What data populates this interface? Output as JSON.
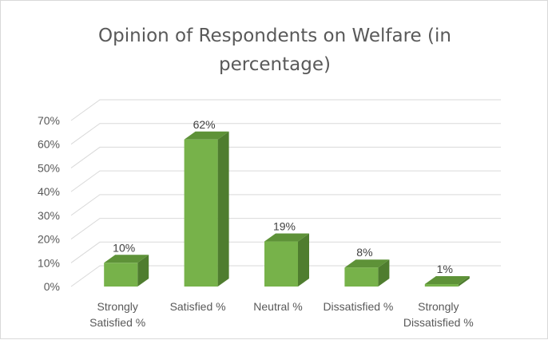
{
  "chart_data": {
    "type": "bar",
    "title": "Opinion of Respondents on Welfare (in\npercentage)",
    "categories": [
      [
        "Strongly",
        "Satisfied %"
      ],
      [
        "Satisfied %"
      ],
      [
        "Neutral %"
      ],
      [
        "Dissatisfied %"
      ],
      [
        "Strongly",
        "Dissatisfied %"
      ]
    ],
    "values": [
      10,
      62,
      19,
      8,
      1
    ],
    "data_labels": [
      "10%",
      "62%",
      "19%",
      "8%",
      "1%"
    ],
    "y_ticks": [
      "0%",
      "10%",
      "20%",
      "30%",
      "40%",
      "50%",
      "60%",
      "70%"
    ],
    "ylim": [
      0,
      70
    ],
    "grid": true,
    "legend": "none",
    "style": "3d-clustered-column",
    "colors": {
      "bar_front": "#77b24a",
      "bar_side": "#4f7d2f",
      "bar_top": "#5e9238",
      "gridline": "#d9d9d9",
      "text": "#595959"
    }
  }
}
